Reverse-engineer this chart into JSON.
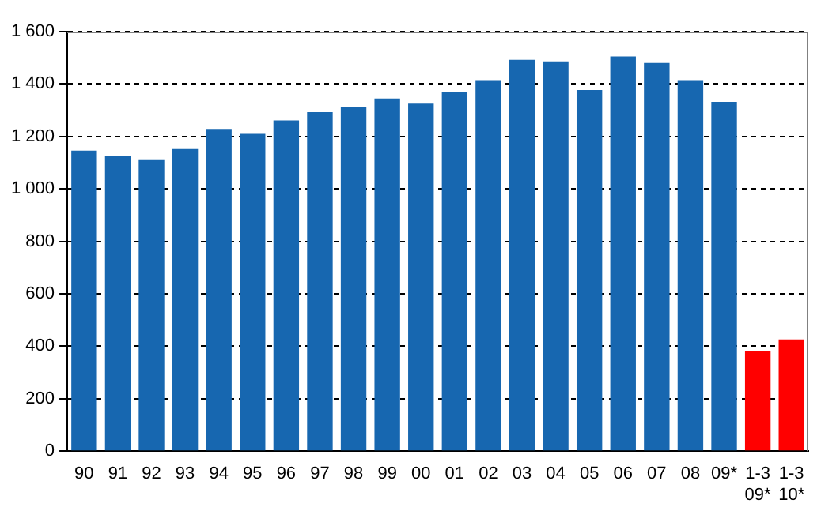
{
  "chart_data": {
    "type": "bar",
    "categories": [
      "90",
      "91",
      "92",
      "93",
      "94",
      "95",
      "96",
      "97",
      "98",
      "99",
      "00",
      "01",
      "02",
      "03",
      "04",
      "05",
      "06",
      "07",
      "08",
      "09*",
      "1-3\n09*",
      "1-3\n10*"
    ],
    "values": [
      1146,
      1126,
      1113,
      1152,
      1229,
      1210,
      1261,
      1293,
      1313,
      1345,
      1325,
      1370,
      1415,
      1492,
      1486,
      1377,
      1505,
      1480,
      1415,
      1332,
      381,
      426
    ],
    "colors": [
      "#1767b0",
      "#1767b0",
      "#1767b0",
      "#1767b0",
      "#1767b0",
      "#1767b0",
      "#1767b0",
      "#1767b0",
      "#1767b0",
      "#1767b0",
      "#1767b0",
      "#1767b0",
      "#1767b0",
      "#1767b0",
      "#1767b0",
      "#1767b0",
      "#1767b0",
      "#1767b0",
      "#1767b0",
      "#1767b0",
      "#ff0000",
      "#ff0000"
    ],
    "ylim": [
      0,
      1600
    ],
    "yticks": [
      0,
      200,
      400,
      600,
      800,
      {
        "value": 1000,
        "label": "1 000"
      },
      {
        "value": 1200,
        "label": "1 200"
      },
      {
        "value": 1400,
        "label": "1 400"
      },
      {
        "value": 1600,
        "label": "1 600"
      }
    ],
    "grid": "y",
    "legend": false
  }
}
